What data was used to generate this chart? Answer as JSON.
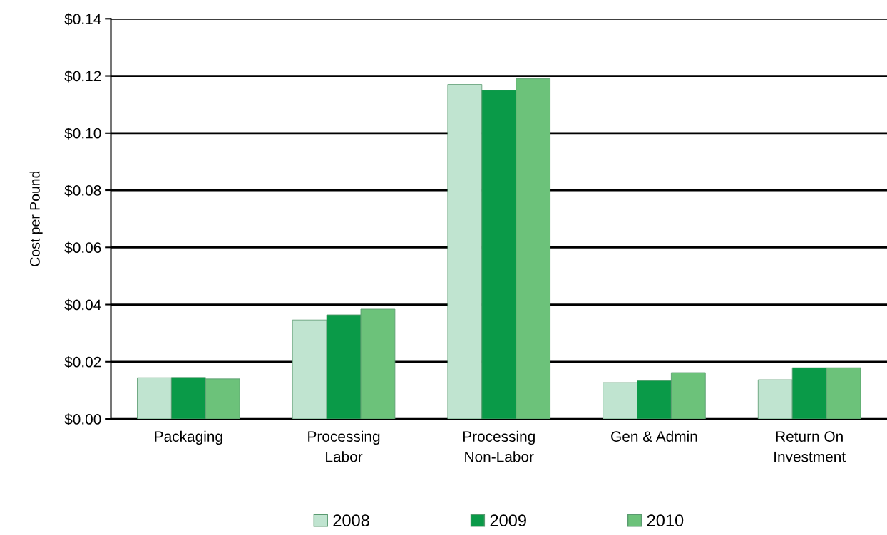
{
  "chart_data": {
    "type": "bar",
    "ylabel": "Cost per Pound",
    "categories": [
      "Packaging",
      "Processing\nLabor",
      "Processing\nNon-Labor",
      "Gen & Admin",
      "Return On\nInvestment"
    ],
    "series": [
      {
        "name": "2008",
        "color": "#c0e4d0",
        "values": [
          0.0144,
          0.0346,
          0.117,
          0.0127,
          0.0137
        ]
      },
      {
        "name": "2009",
        "color": "#0a9a48",
        "values": [
          0.0145,
          0.0364,
          0.115,
          0.0134,
          0.0179
        ]
      },
      {
        "name": "2010",
        "color": "#6cc27a",
        "values": [
          0.014,
          0.0384,
          0.119,
          0.0162,
          0.0179
        ]
      }
    ],
    "ylim": [
      0,
      0.14
    ],
    "yticks": [
      {
        "value": 0,
        "label": "$0.00"
      },
      {
        "value": 0.02,
        "label": "$0.02"
      },
      {
        "value": 0.04,
        "label": "$0.04"
      },
      {
        "value": 0.06,
        "label": "$0.06"
      },
      {
        "value": 0.08,
        "label": "$0.08"
      },
      {
        "value": 0.1,
        "label": "$0.10"
      },
      {
        "value": 0.12,
        "label": "$0.12"
      },
      {
        "value": 0.14,
        "label": "$0.14"
      }
    ],
    "grid": "y",
    "legend": "bottom"
  }
}
